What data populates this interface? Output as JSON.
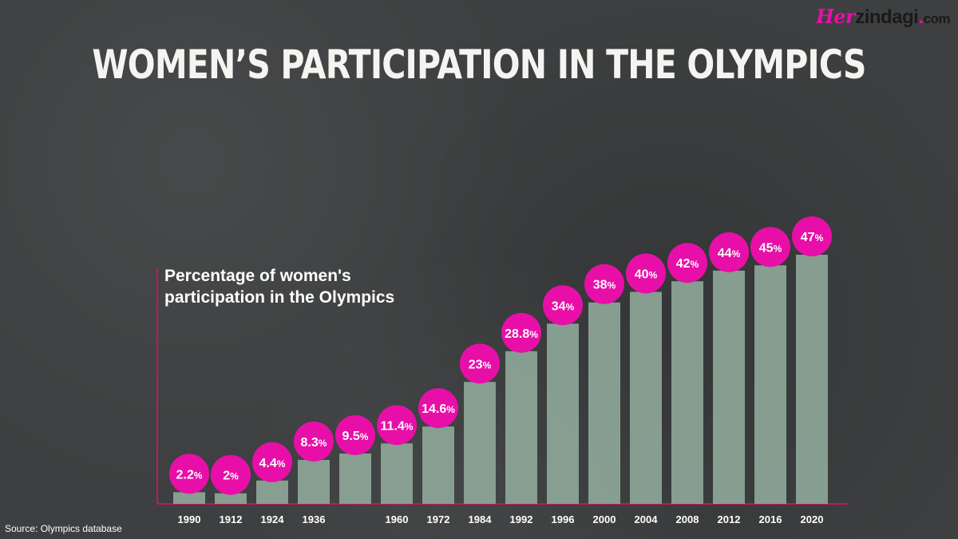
{
  "title": "WOMEN’S PARTICIPATION IN THE OLYMPICS",
  "logo": {
    "her": "Her",
    "zindagi": "zindagi",
    "dot": ".",
    "com": "com"
  },
  "source": "Source: Olympics database",
  "colors": {
    "bar": "#8fa89a",
    "bubble": "#e80fa8",
    "axis": "#c2185b"
  },
  "chart_data": {
    "type": "bar",
    "title": "Percentage of women's participation in the Olympics",
    "title_lines": [
      "Percentage of women's",
      "participation in the Olympics"
    ],
    "categories": [
      "1990",
      "1912",
      "1924",
      "1936",
      "",
      "1960",
      "1972",
      "1984",
      "1992",
      "1996",
      "2000",
      "2004",
      "2008",
      "2012",
      "2016",
      "2020"
    ],
    "values": [
      2.2,
      2,
      4.4,
      8.3,
      9.5,
      11.4,
      14.6,
      23,
      28.8,
      34,
      38,
      40,
      42,
      44,
      45,
      47
    ],
    "labels": [
      "2.2",
      "2",
      "4.4",
      "8.3",
      "9.5",
      "11.4",
      "14.6",
      "23",
      "28.8",
      "34",
      "38",
      "40",
      "42",
      "44",
      "45",
      "47"
    ],
    "unit": "%",
    "ylim": [
      0,
      47
    ],
    "grid": false
  }
}
